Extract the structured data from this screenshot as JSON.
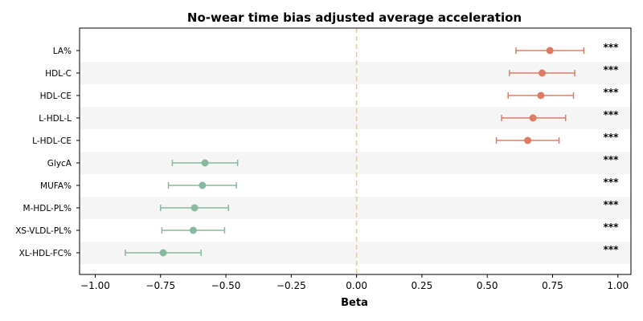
{
  "chart_data": {
    "type": "forest",
    "title": "No-wear time bias adjusted average acceleration",
    "xlabel": "Beta",
    "xlim": [
      -1.06,
      1.05
    ],
    "xticks": [
      -1.0,
      -0.75,
      -0.5,
      -0.25,
      0.0,
      0.25,
      0.5,
      0.75,
      1.0
    ],
    "xtick_labels": [
      "−1.00",
      "−0.75",
      "−0.50",
      "−0.25",
      "0.00",
      "0.25",
      "0.50",
      "0.75",
      "1.00"
    ],
    "reference_line": 0.0,
    "significance_label": "***",
    "colors": {
      "positive": "#e07b63",
      "negative": "#86b99e",
      "reference": "#f2c879",
      "band": "#f5f5f5"
    },
    "rows": [
      {
        "label": "LA%",
        "beta": 0.74,
        "ci_low": 0.61,
        "ci_high": 0.87,
        "sig": "***"
      },
      {
        "label": "HDL-C",
        "beta": 0.71,
        "ci_low": 0.585,
        "ci_high": 0.835,
        "sig": "***"
      },
      {
        "label": "HDL-CE",
        "beta": 0.705,
        "ci_low": 0.58,
        "ci_high": 0.83,
        "sig": "***"
      },
      {
        "label": "L-HDL-L",
        "beta": 0.675,
        "ci_low": 0.555,
        "ci_high": 0.8,
        "sig": "***"
      },
      {
        "label": "L-HDL-CE",
        "beta": 0.655,
        "ci_low": 0.535,
        "ci_high": 0.775,
        "sig": "***"
      },
      {
        "label": "GlycA",
        "beta": -0.58,
        "ci_low": -0.705,
        "ci_high": -0.455,
        "sig": "***"
      },
      {
        "label": "MUFA%",
        "beta": -0.59,
        "ci_low": -0.72,
        "ci_high": -0.46,
        "sig": "***"
      },
      {
        "label": "M-HDL-PL%",
        "beta": -0.62,
        "ci_low": -0.75,
        "ci_high": -0.49,
        "sig": "***"
      },
      {
        "label": "XS-VLDL-PL%",
        "beta": -0.625,
        "ci_low": -0.745,
        "ci_high": -0.505,
        "sig": "***"
      },
      {
        "label": "XL-HDL-FC%",
        "beta": -0.74,
        "ci_low": -0.885,
        "ci_high": -0.595,
        "sig": "***"
      }
    ]
  }
}
